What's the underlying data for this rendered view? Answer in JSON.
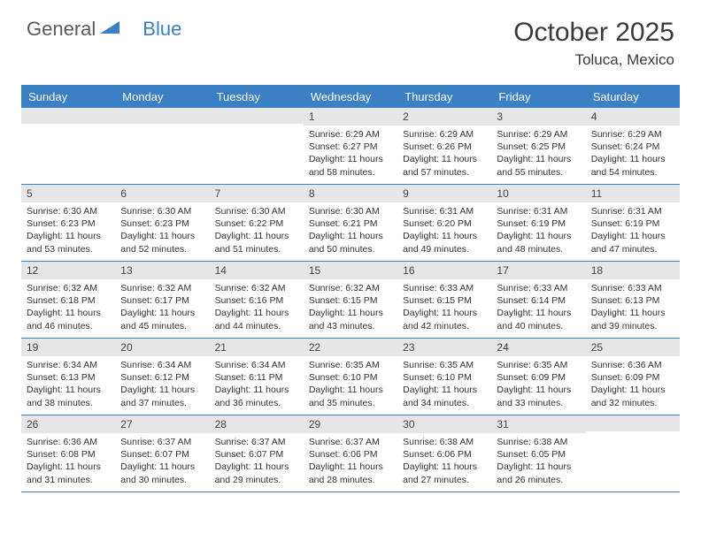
{
  "brand": {
    "part1": "General",
    "part2": "Blue"
  },
  "title": "October 2025",
  "subtitle": "Toluca, Mexico",
  "colors": {
    "accent": "#3b7fc4",
    "header_bg": "#3b7fc4",
    "daynum_bg": "#e6e6e6",
    "text": "#2a2a2a",
    "background": "#ffffff"
  },
  "day_names": [
    "Sunday",
    "Monday",
    "Tuesday",
    "Wednesday",
    "Thursday",
    "Friday",
    "Saturday"
  ],
  "weeks": [
    [
      {
        "day": "",
        "sunrise": "",
        "sunset": "",
        "daylight": ""
      },
      {
        "day": "",
        "sunrise": "",
        "sunset": "",
        "daylight": ""
      },
      {
        "day": "",
        "sunrise": "",
        "sunset": "",
        "daylight": ""
      },
      {
        "day": "1",
        "sunrise": "Sunrise: 6:29 AM",
        "sunset": "Sunset: 6:27 PM",
        "daylight": "Daylight: 11 hours and 58 minutes."
      },
      {
        "day": "2",
        "sunrise": "Sunrise: 6:29 AM",
        "sunset": "Sunset: 6:26 PM",
        "daylight": "Daylight: 11 hours and 57 minutes."
      },
      {
        "day": "3",
        "sunrise": "Sunrise: 6:29 AM",
        "sunset": "Sunset: 6:25 PM",
        "daylight": "Daylight: 11 hours and 55 minutes."
      },
      {
        "day": "4",
        "sunrise": "Sunrise: 6:29 AM",
        "sunset": "Sunset: 6:24 PM",
        "daylight": "Daylight: 11 hours and 54 minutes."
      }
    ],
    [
      {
        "day": "5",
        "sunrise": "Sunrise: 6:30 AM",
        "sunset": "Sunset: 6:23 PM",
        "daylight": "Daylight: 11 hours and 53 minutes."
      },
      {
        "day": "6",
        "sunrise": "Sunrise: 6:30 AM",
        "sunset": "Sunset: 6:23 PM",
        "daylight": "Daylight: 11 hours and 52 minutes."
      },
      {
        "day": "7",
        "sunrise": "Sunrise: 6:30 AM",
        "sunset": "Sunset: 6:22 PM",
        "daylight": "Daylight: 11 hours and 51 minutes."
      },
      {
        "day": "8",
        "sunrise": "Sunrise: 6:30 AM",
        "sunset": "Sunset: 6:21 PM",
        "daylight": "Daylight: 11 hours and 50 minutes."
      },
      {
        "day": "9",
        "sunrise": "Sunrise: 6:31 AM",
        "sunset": "Sunset: 6:20 PM",
        "daylight": "Daylight: 11 hours and 49 minutes."
      },
      {
        "day": "10",
        "sunrise": "Sunrise: 6:31 AM",
        "sunset": "Sunset: 6:19 PM",
        "daylight": "Daylight: 11 hours and 48 minutes."
      },
      {
        "day": "11",
        "sunrise": "Sunrise: 6:31 AM",
        "sunset": "Sunset: 6:19 PM",
        "daylight": "Daylight: 11 hours and 47 minutes."
      }
    ],
    [
      {
        "day": "12",
        "sunrise": "Sunrise: 6:32 AM",
        "sunset": "Sunset: 6:18 PM",
        "daylight": "Daylight: 11 hours and 46 minutes."
      },
      {
        "day": "13",
        "sunrise": "Sunrise: 6:32 AM",
        "sunset": "Sunset: 6:17 PM",
        "daylight": "Daylight: 11 hours and 45 minutes."
      },
      {
        "day": "14",
        "sunrise": "Sunrise: 6:32 AM",
        "sunset": "Sunset: 6:16 PM",
        "daylight": "Daylight: 11 hours and 44 minutes."
      },
      {
        "day": "15",
        "sunrise": "Sunrise: 6:32 AM",
        "sunset": "Sunset: 6:15 PM",
        "daylight": "Daylight: 11 hours and 43 minutes."
      },
      {
        "day": "16",
        "sunrise": "Sunrise: 6:33 AM",
        "sunset": "Sunset: 6:15 PM",
        "daylight": "Daylight: 11 hours and 42 minutes."
      },
      {
        "day": "17",
        "sunrise": "Sunrise: 6:33 AM",
        "sunset": "Sunset: 6:14 PM",
        "daylight": "Daylight: 11 hours and 40 minutes."
      },
      {
        "day": "18",
        "sunrise": "Sunrise: 6:33 AM",
        "sunset": "Sunset: 6:13 PM",
        "daylight": "Daylight: 11 hours and 39 minutes."
      }
    ],
    [
      {
        "day": "19",
        "sunrise": "Sunrise: 6:34 AM",
        "sunset": "Sunset: 6:13 PM",
        "daylight": "Daylight: 11 hours and 38 minutes."
      },
      {
        "day": "20",
        "sunrise": "Sunrise: 6:34 AM",
        "sunset": "Sunset: 6:12 PM",
        "daylight": "Daylight: 11 hours and 37 minutes."
      },
      {
        "day": "21",
        "sunrise": "Sunrise: 6:34 AM",
        "sunset": "Sunset: 6:11 PM",
        "daylight": "Daylight: 11 hours and 36 minutes."
      },
      {
        "day": "22",
        "sunrise": "Sunrise: 6:35 AM",
        "sunset": "Sunset: 6:10 PM",
        "daylight": "Daylight: 11 hours and 35 minutes."
      },
      {
        "day": "23",
        "sunrise": "Sunrise: 6:35 AM",
        "sunset": "Sunset: 6:10 PM",
        "daylight": "Daylight: 11 hours and 34 minutes."
      },
      {
        "day": "24",
        "sunrise": "Sunrise: 6:35 AM",
        "sunset": "Sunset: 6:09 PM",
        "daylight": "Daylight: 11 hours and 33 minutes."
      },
      {
        "day": "25",
        "sunrise": "Sunrise: 6:36 AM",
        "sunset": "Sunset: 6:09 PM",
        "daylight": "Daylight: 11 hours and 32 minutes."
      }
    ],
    [
      {
        "day": "26",
        "sunrise": "Sunrise: 6:36 AM",
        "sunset": "Sunset: 6:08 PM",
        "daylight": "Daylight: 11 hours and 31 minutes."
      },
      {
        "day": "27",
        "sunrise": "Sunrise: 6:37 AM",
        "sunset": "Sunset: 6:07 PM",
        "daylight": "Daylight: 11 hours and 30 minutes."
      },
      {
        "day": "28",
        "sunrise": "Sunrise: 6:37 AM",
        "sunset": "Sunset: 6:07 PM",
        "daylight": "Daylight: 11 hours and 29 minutes."
      },
      {
        "day": "29",
        "sunrise": "Sunrise: 6:37 AM",
        "sunset": "Sunset: 6:06 PM",
        "daylight": "Daylight: 11 hours and 28 minutes."
      },
      {
        "day": "30",
        "sunrise": "Sunrise: 6:38 AM",
        "sunset": "Sunset: 6:06 PM",
        "daylight": "Daylight: 11 hours and 27 minutes."
      },
      {
        "day": "31",
        "sunrise": "Sunrise: 6:38 AM",
        "sunset": "Sunset: 6:05 PM",
        "daylight": "Daylight: 11 hours and 26 minutes."
      },
      {
        "day": "",
        "sunrise": "",
        "sunset": "",
        "daylight": ""
      }
    ]
  ]
}
